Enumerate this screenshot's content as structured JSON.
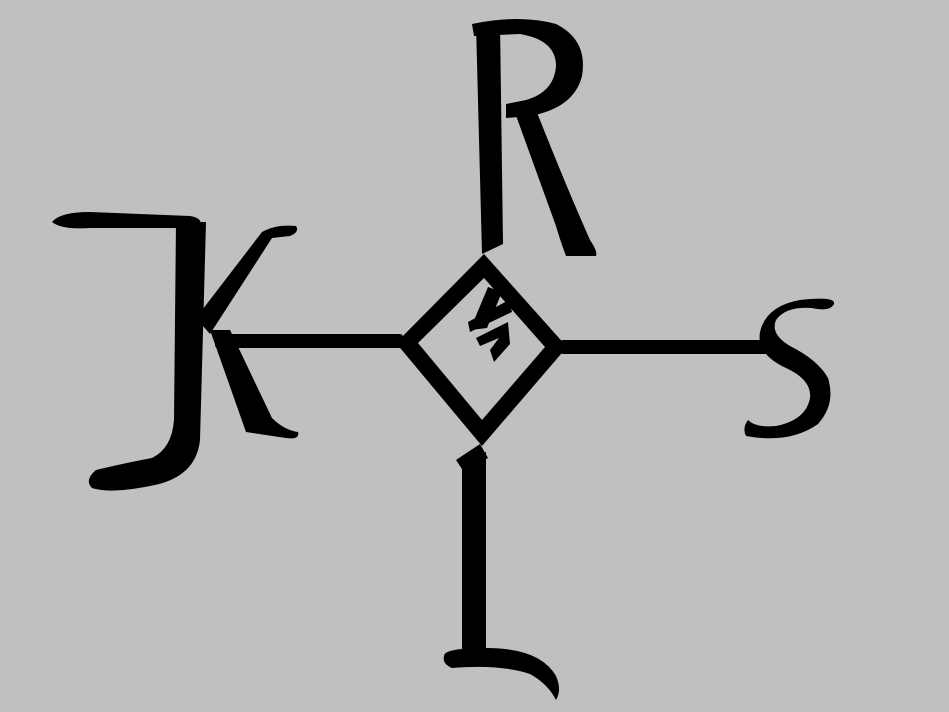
{
  "background_color": "#c0c0c0",
  "ink_color": "#000000",
  "monogram": {
    "letters": {
      "top": "R",
      "left": "K",
      "right": "S",
      "bottom": "L",
      "center": "A"
    }
  }
}
